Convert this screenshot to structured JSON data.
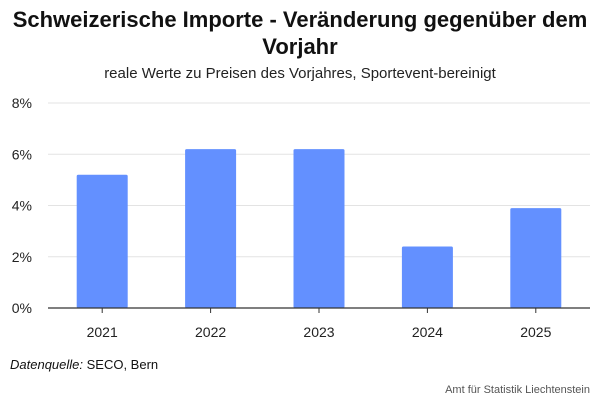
{
  "chart_data": {
    "type": "bar",
    "title": "Schweizerische Importe - Veränderung gegenüber dem Vorjahr",
    "subtitle": "reale Werte zu Preisen des Vorjahres, Sportevent-bereinigt",
    "categories": [
      "2021",
      "2022",
      "2023",
      "2024",
      "2025"
    ],
    "values": [
      5.2,
      6.2,
      6.2,
      2.4,
      3.9
    ],
    "value_unit": "%",
    "ylim": [
      0,
      8
    ],
    "yticks": [
      0,
      2,
      4,
      6,
      8
    ],
    "ytick_labels": [
      "0%",
      "2%",
      "4%",
      "6%",
      "8%"
    ],
    "grid": true,
    "legend": "none",
    "bar_color": "#6390ff",
    "grid_color": "#e3e3e3",
    "axis_color": "#333333"
  },
  "source": {
    "label": "Datenquelle:",
    "value": " SECO, Bern"
  },
  "footer": {
    "text": "Amt für Statistik Liechtenstein"
  }
}
